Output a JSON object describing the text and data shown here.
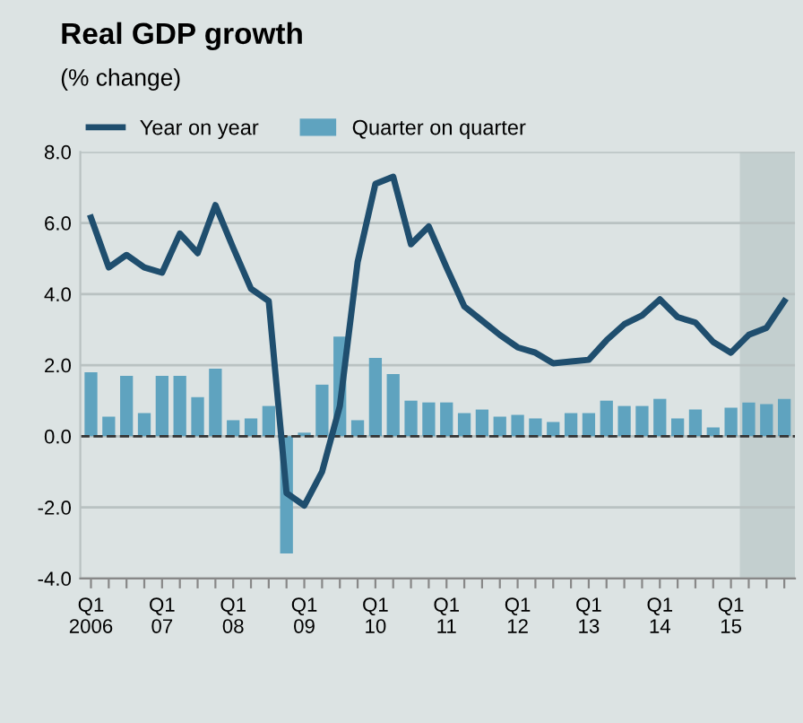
{
  "chart_data": {
    "type": "bar",
    "title": "Real GDP growth",
    "subtitle": "(% change)",
    "categories": [
      "Q1\n2006",
      null,
      null,
      null,
      "Q1\n07",
      null,
      null,
      null,
      "Q1\n08",
      null,
      null,
      null,
      "Q1\n09",
      null,
      null,
      null,
      "Q1\n10",
      null,
      null,
      null,
      "Q1\n11",
      null,
      null,
      null,
      "Q1\n12",
      null,
      null,
      null,
      "Q1\n13",
      null,
      null,
      null,
      "Q1\n14",
      null,
      null,
      null,
      "Q1\n15",
      null,
      null,
      null
    ],
    "series": [
      {
        "name": "Year on year",
        "type": "line",
        "color": "#1f4e6e",
        "values": [
          6.15,
          4.75,
          5.1,
          4.75,
          4.6,
          5.7,
          5.15,
          6.5,
          5.3,
          4.15,
          3.8,
          -1.6,
          -1.95,
          -1.0,
          0.85,
          4.9,
          7.1,
          7.3,
          5.4,
          5.9,
          4.75,
          3.65,
          3.25,
          2.85,
          2.5,
          2.35,
          2.05,
          2.1,
          2.15,
          2.7,
          3.15,
          3.4,
          3.85,
          3.35,
          3.2,
          2.65,
          2.35,
          2.85,
          3.05,
          3.8
        ]
      },
      {
        "name": "Quarter on quarter",
        "color": "#5fa3bf",
        "values": [
          1.8,
          0.55,
          1.7,
          0.65,
          1.7,
          1.7,
          1.1,
          1.9,
          0.45,
          0.5,
          0.85,
          -3.3,
          0.1,
          1.45,
          2.8,
          0.45,
          2.2,
          1.75,
          1.0,
          0.95,
          0.95,
          0.65,
          0.75,
          0.55,
          0.6,
          0.5,
          0.4,
          0.65,
          0.65,
          1.0,
          0.85,
          0.85,
          1.05,
          0.5,
          0.75,
          0.25,
          0.8,
          0.95,
          0.9,
          1.05
        ]
      }
    ],
    "ylim": [
      -4,
      8
    ],
    "yticks": [
      {
        "value": -4,
        "label": "-4.0"
      },
      {
        "value": -2,
        "label": "-2.0"
      },
      {
        "value": 0,
        "label": "0.0"
      },
      {
        "value": 2,
        "label": "2.0"
      },
      {
        "value": 4,
        "label": "4.0"
      },
      {
        "value": 6,
        "label": "6.0"
      },
      {
        "value": 8,
        "label": "8.0"
      }
    ],
    "grid": "y",
    "legend": "top left",
    "ref_lines": [
      {
        "axis": "y",
        "value": 0,
        "color": "#333333",
        "line_style": "dashed"
      }
    ]
  }
}
